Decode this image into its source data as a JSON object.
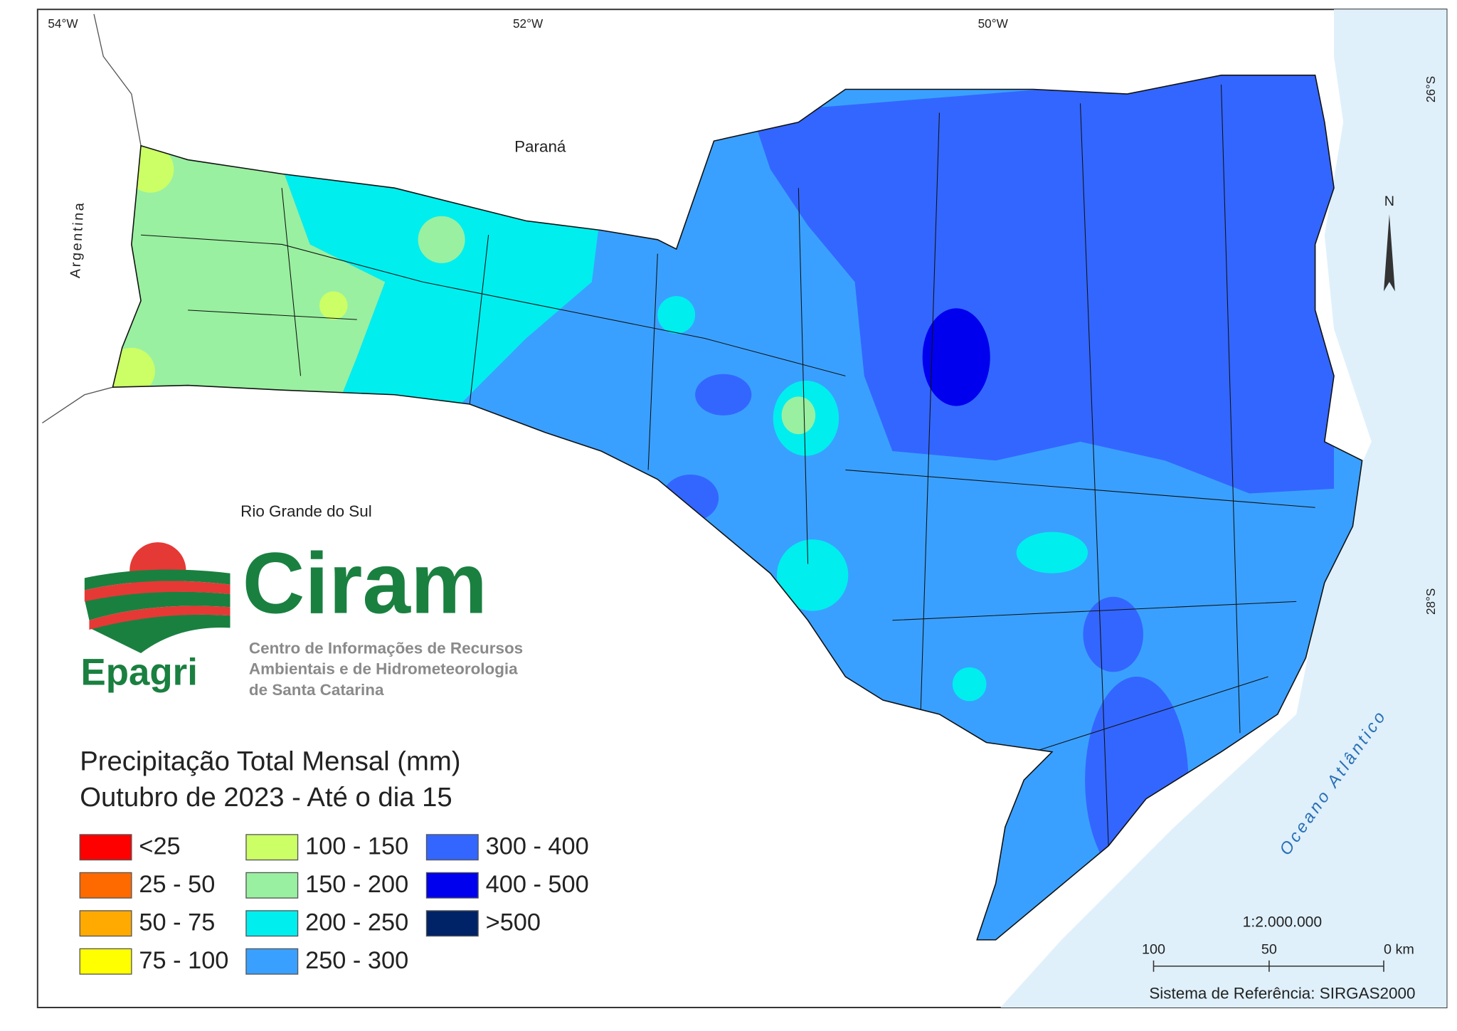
{
  "map": {
    "grid_labels": {
      "longitude": [
        "54°W",
        "52°W",
        "50°W"
      ],
      "latitude": [
        "26°S",
        "28°S"
      ]
    },
    "places": {
      "north_state": "Paraná",
      "south_state": "Rio Grande do Sul",
      "country": "Argentina",
      "ocean": "Oceano Atlântico"
    },
    "north": "N",
    "scale": {
      "ratio": "1:2.000.000",
      "ticks": [
        "100",
        "50",
        "0 km"
      ]
    },
    "reference": "Sistema de Referência: SIRGAS2000"
  },
  "logo": {
    "name": "Ciram",
    "org": "Epagri",
    "lines": [
      "Centro de Informações de Recursos",
      "Ambientais e de Hidrometeorologia",
      "de Santa Catarina"
    ]
  },
  "title_lines": [
    "Precipitação Total Mensal (mm)",
    "Outubro de 2023 - Até o dia 15"
  ],
  "legend": {
    "items": [
      {
        "label": "<25",
        "color": "#ff0000"
      },
      {
        "label": "25 - 50",
        "color": "#ff6a00"
      },
      {
        "label": "50 - 75",
        "color": "#ffaa00"
      },
      {
        "label": "75 - 100",
        "color": "#ffff00"
      },
      {
        "label": "100 - 150",
        "color": "#ccff66"
      },
      {
        "label": "150 - 200",
        "color": "#99f0a0"
      },
      {
        "label": "200 - 250",
        "color": "#00eeee"
      },
      {
        "label": "250 - 300",
        "color": "#3aa0ff"
      },
      {
        "label": "300 - 400",
        "color": "#3366ff"
      },
      {
        "label": "400 - 500",
        "color": "#0000ee"
      },
      {
        "label": ">500",
        "color": "#002266"
      }
    ]
  }
}
